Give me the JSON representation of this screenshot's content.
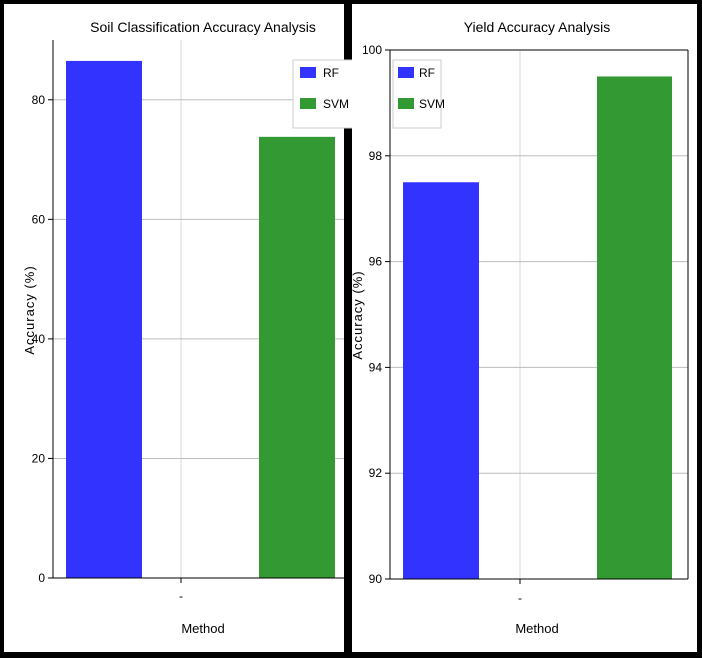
{
  "chart_data": [
    {
      "type": "bar",
      "title": "Soil Classification Accuracy Analysis",
      "xlabel": "Method",
      "ylabel": "Accuracy (%)",
      "categories": [
        "-"
      ],
      "series": [
        {
          "name": "RF",
          "values": [
            86.5
          ],
          "color": "#3333ff"
        },
        {
          "name": "SVM",
          "values": [
            73.8
          ],
          "color": "#339933"
        }
      ],
      "ylim": [
        0,
        90
      ],
      "yticks": [
        0,
        20,
        40,
        60,
        80
      ],
      "grid": true,
      "legend": "top-right"
    },
    {
      "type": "bar",
      "title": "Yield Accuracy Analysis",
      "xlabel": "Method",
      "ylabel": "Accuracy (%)",
      "categories": [
        "-"
      ],
      "series": [
        {
          "name": "RF",
          "values": [
            97.5
          ],
          "color": "#3333ff"
        },
        {
          "name": "SVM",
          "values": [
            99.5
          ],
          "color": "#339933"
        }
      ],
      "ylim": [
        90,
        100
      ],
      "yticks": [
        90,
        92,
        94,
        96,
        98,
        100
      ],
      "grid": true,
      "legend": "top-left"
    }
  ]
}
